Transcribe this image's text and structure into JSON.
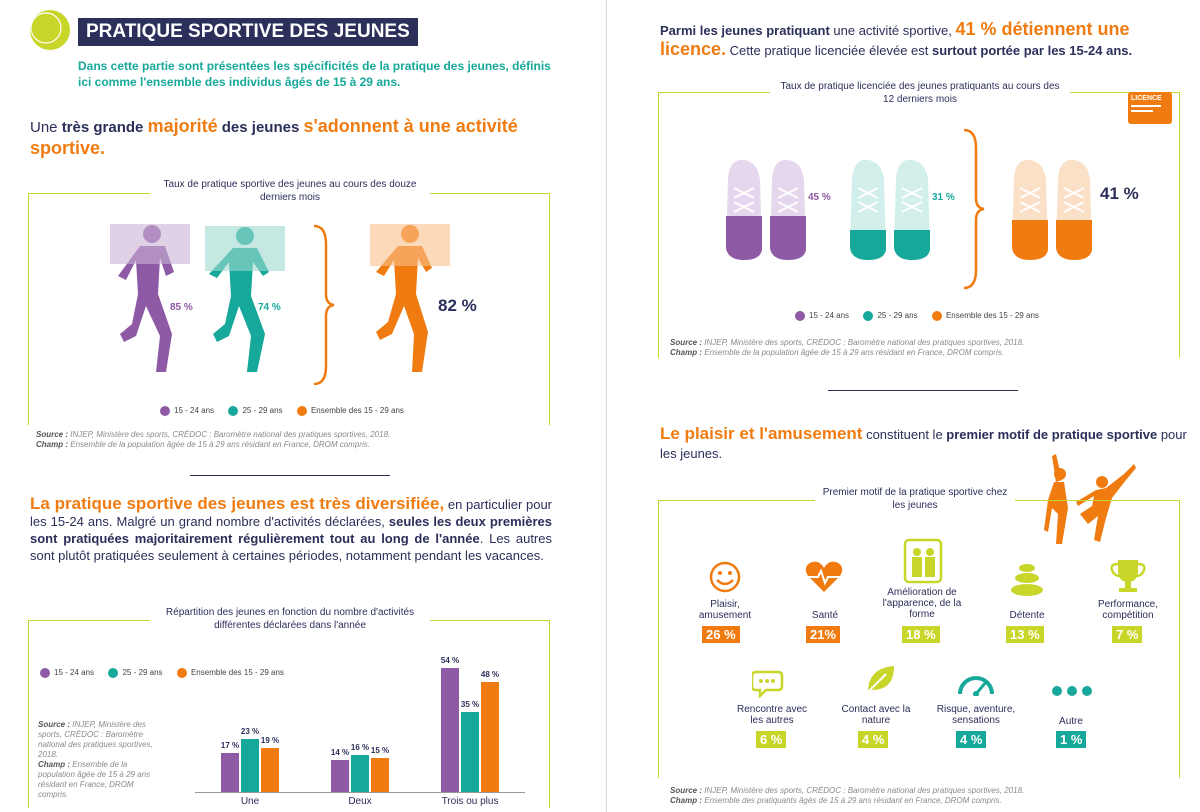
{
  "colors": {
    "purple": "#8e5aa5",
    "teal": "#16a89a",
    "orange": "#f07c11",
    "lime": "#c8d629",
    "navy": "#2b2f5a"
  },
  "left": {
    "title": "PRATIQUE SPORTIVE DES JEUNES",
    "intro": "Dans cette partie sont présentées les spécificités de la pratique des jeunes, définis ici comme l'ensemble des individus âgés de 15 à 29 ans.",
    "headline1": {
      "a": "Une ",
      "b": "très grande ",
      "c": "majorité",
      "d": " des jeunes ",
      "e": "s'adonnent à une activité sportive."
    },
    "chart1": {
      "title": "Taux de pratique sportive des jeunes au cours des douze derniers mois",
      "values": [
        {
          "label": "85 %",
          "value": 85
        },
        {
          "label": "74 %",
          "value": 74
        },
        {
          "label": "82 %",
          "value": 82
        }
      ],
      "legend": [
        "15 - 24 ans",
        "25 - 29 ans",
        "Ensemble des 15 - 29 ans"
      ],
      "source_label": "Source :",
      "source": "INJEP, Ministère des sports, CRÉDOC : Baromètre national des pratiques sportives, 2018.",
      "champ_label": "Champ :",
      "champ": "Ensemble de la population âgée de 15 à 29 ans résidant en France, DROM compris."
    },
    "headline2": {
      "a": "La pratique sportive des jeunes est très diversifiée,",
      "b": " en particulier pour les 15-24 ans. Malgré un grand nombre d'activités déclarées, ",
      "c": "seules les deux premières sont pratiquées majoritairement régulièrement tout au long de l'année",
      "d": ". Les autres sont plutôt pratiquées seulement à certaines périodes, notamment pendant les vacances."
    },
    "chart2": {
      "title": "Répartition des jeunes en fonction du nombre d'activités différentes déclarées dans l'année",
      "legend": [
        "15 - 24 ans",
        "25 - 29 ans",
        "Ensemble des 15 - 29 ans"
      ],
      "source_label": "Source :",
      "source": "INJEP, Ministère des sports, CRÉDOC : Baromètre national des pratiques sportives, 2018.",
      "champ_label": "Champ :",
      "champ": "Ensemble de la population âgée de 15 à 29 ans résidant en France, DROM compris."
    }
  },
  "right": {
    "headline1": {
      "a": "Parmi les jeunes pratiquant",
      "b": " une activité sportive, ",
      "c": "41 % détiennent une licence.",
      "d": " Cette pratique licenciée élevée est ",
      "e": "surtout portée par les 15-24 ans."
    },
    "chart3": {
      "title": "Taux de pratique licenciée des jeunes pratiquants au cours des 12 derniers mois",
      "badge": "LICENCE",
      "values": [
        {
          "label": "45 %",
          "value": 45
        },
        {
          "label": "31 %",
          "value": 31
        },
        {
          "label": "41 %",
          "value": 41
        }
      ],
      "legend": [
        "15 - 24 ans",
        "25 - 29 ans",
        "Ensemble des 15 - 29 ans"
      ],
      "source_label": "Source :",
      "source": "INJEP, Ministère des sports, CRÉDOC : Baromètre national des pratiques sportives, 2018.",
      "champ_label": "Champ :",
      "champ": "Ensemble de la population âgée de 15 à 29 ans résidant en France, DROM compris."
    },
    "headline2": {
      "a": "Le plaisir et l'amusement",
      "b": " constituent le ",
      "c": "premier motif de pratique sportive",
      "d": " pour les jeunes."
    },
    "motives": {
      "title": "Premier motif de la pratique sportive chez les jeunes",
      "items": [
        {
          "label": "Plaisir, amusement",
          "pct": "26 %",
          "icon": "smiley-icon"
        },
        {
          "label": "Santé",
          "pct": "21%",
          "icon": "heart-pulse-icon"
        },
        {
          "label": "Amélioration de l'apparence, de la forme",
          "pct": "18 %",
          "icon": "mirror-icon"
        },
        {
          "label": "Détente",
          "pct": "13 %",
          "icon": "stones-icon"
        },
        {
          "label": "Performance, compétition",
          "pct": "7 %",
          "icon": "trophy-icon"
        },
        {
          "label": "Rencontre avec les autres",
          "pct": "6 %",
          "icon": "chat-icon"
        },
        {
          "label": "Contact avec la nature",
          "pct": "4 %",
          "icon": "leaf-icon"
        },
        {
          "label": "Risque, aventure, sensations",
          "pct": "4 %",
          "icon": "gauge-icon"
        },
        {
          "label": "Autre",
          "pct": "1 %",
          "icon": "dots-icon"
        }
      ],
      "source_label": "Source :",
      "source": "INJEP, Ministère des sports, CRÉDOC : Baromètre national des pratiques sportives, 2018.",
      "champ_label": "Champ :",
      "champ": "Ensemble des pratiquants âgés de 15 à 29 ans résidant en France, DROM compris."
    }
  },
  "chart_data": [
    {
      "type": "bar",
      "title": "Taux de pratique sportive des jeunes au cours des douze derniers mois",
      "categories": [
        "15 - 24 ans",
        "25 - 29 ans",
        "Ensemble des 15 - 29 ans"
      ],
      "values": [
        85,
        74,
        82
      ],
      "unit": "%"
    },
    {
      "type": "bar",
      "title": "Répartition des jeunes en fonction du nombre d'activités différentes déclarées dans l'année",
      "categories": [
        "Une",
        "Deux",
        "Trois ou plus"
      ],
      "series": [
        {
          "name": "15 - 24 ans",
          "values": [
            17,
            14,
            54
          ],
          "labels": [
            "17 %",
            "14 %",
            "54 %"
          ]
        },
        {
          "name": "25 - 29 ans",
          "values": [
            23,
            16,
            35
          ],
          "labels": [
            "23 %",
            "16 %",
            "35 %"
          ]
        },
        {
          "name": "Ensemble des 15 - 29 ans",
          "values": [
            19,
            15,
            48
          ],
          "labels": [
            "19 %",
            "15 %",
            "48 %"
          ]
        }
      ],
      "ylim": [
        0,
        60
      ],
      "legend": "top-left"
    },
    {
      "type": "bar",
      "title": "Taux de pratique licenciée des jeunes pratiquants au cours des 12 derniers mois",
      "categories": [
        "15 - 24 ans",
        "25 - 29 ans",
        "Ensemble des 15 - 29 ans"
      ],
      "values": [
        45,
        31,
        41
      ],
      "unit": "%"
    }
  ]
}
